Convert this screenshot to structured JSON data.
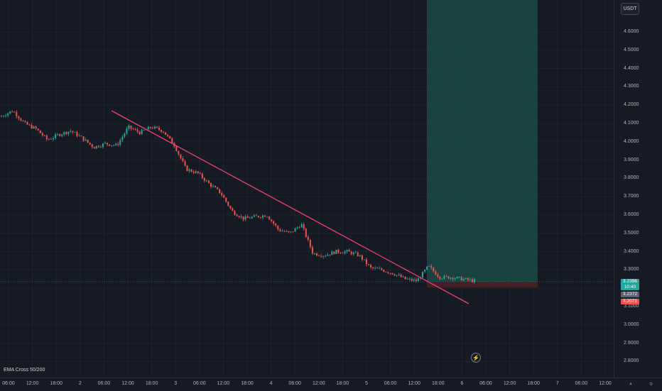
{
  "currency_button": "USDT",
  "indicator": "EMA Cross 50/200",
  "price_labels": {
    "current_price": "3.2396",
    "countdown": "10:40",
    "entry_price": "3.2372",
    "stop_price": "3.2071"
  },
  "icons": {
    "alert": "lightning-icon",
    "scroll_left": "chevron-up-icon",
    "settings": "settings-icon"
  },
  "colors": {
    "background": "#161a25",
    "up": "#26a69a",
    "down": "#ef5350",
    "trendline": "#f23d7d",
    "target_zone": "#1a4a47",
    "stop_zone": "#4a1f27"
  },
  "chart_data": {
    "type": "candlestick",
    "y_ticks": [
      "4.6000",
      "4.5000",
      "4.4000",
      "4.3000",
      "4.2000",
      "4.1000",
      "4.0000",
      "3.9000",
      "3.8000",
      "3.7000",
      "3.6000",
      "3.5000",
      "3.4000",
      "3.3000",
      "3.2000",
      "3.1000",
      "3.0000",
      "2.9000",
      "2.8000"
    ],
    "x_ticks": [
      "06:00",
      "12:00",
      "18:00",
      "2",
      "06:00",
      "12:00",
      "18:00",
      "3",
      "06:00",
      "12:00",
      "18:00",
      "4",
      "06:00",
      "12:00",
      "18:00",
      "5",
      "06:00",
      "12:00",
      "18:00",
      "6",
      "06:00",
      "12:00",
      "18:00",
      "7",
      "06:00",
      "12:00"
    ],
    "ylim": [
      2.8,
      4.66
    ],
    "price_path": [
      4.14,
      4.17,
      4.1,
      4.07,
      4.01,
      4.04,
      4.06,
      4.02,
      3.97,
      3.99,
      3.98,
      4.08,
      4.05,
      4.08,
      4.06,
      3.98,
      3.85,
      3.83,
      3.77,
      3.72,
      3.62,
      3.58,
      3.59,
      3.6,
      3.52,
      3.5,
      3.55,
      3.39,
      3.38,
      3.4,
      3.4,
      3.38,
      3.31,
      3.3,
      3.28,
      3.25,
      3.24,
      3.32,
      3.26,
      3.26,
      3.25,
      3.24
    ]
  }
}
